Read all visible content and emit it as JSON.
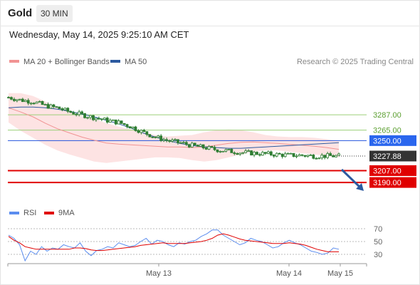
{
  "header": {
    "title": "Gold",
    "timeframe": "30 MIN",
    "datetime": "Wednesday, May 14, 2025 9:25:10 AM CET"
  },
  "colors": {
    "candle": "#2e7d32",
    "bollinger_fill": "#fde3e3",
    "ma20": "#f19393",
    "ma50": "#2c5aa0",
    "support": "#e00000",
    "resistance": "#9ccf79",
    "pivot": "#2255dd",
    "arrow": "#2c5aa0",
    "rsi": "#5b8def",
    "rsi_ma": "#e00000"
  },
  "chart_data": [
    {
      "type": "candlestick",
      "legend": [
        {
          "name": "MA 20 + Bollinger Bands",
          "color": "#f19393"
        },
        {
          "name": "MA 50",
          "color": "#2c5aa0"
        }
      ],
      "credit": "Research © 2025 Trading Central",
      "ylim": [
        3184,
        3331
      ],
      "x_labels": [
        "May 13",
        "May 14",
        "May 15"
      ],
      "levels": [
        {
          "value": 3287.0,
          "label": "3287.00",
          "kind": "resistance"
        },
        {
          "value": 3265.0,
          "label": "3265.00",
          "kind": "resistance"
        },
        {
          "value": 3250.0,
          "label": "3250.00",
          "kind": "pivot"
        },
        {
          "value": 3207.0,
          "label": "3207.00",
          "kind": "support"
        },
        {
          "value": 3190.0,
          "label": "3190.00",
          "kind": "support"
        }
      ],
      "last_price": {
        "value": 3227.88,
        "label": "3227.88"
      },
      "close": [
        3312,
        3308,
        3306,
        3300,
        3297,
        3291,
        3287,
        3283,
        3279,
        3276,
        3270,
        3262,
        3255,
        3250,
        3247,
        3243,
        3240,
        3237,
        3235,
        3233,
        3232,
        3231,
        3230,
        3229,
        3229,
        3228,
        3228,
        3227.88
      ],
      "ma50": [
        3297,
        3298,
        3298,
        3297,
        3295,
        3292,
        3288,
        3284,
        3279,
        3274,
        3268,
        3261,
        3255,
        3250,
        3246,
        3243,
        3241,
        3240,
        3239,
        3239,
        3240,
        3241,
        3242,
        3243,
        3244,
        3245,
        3246,
        3247
      ],
      "bb_upper": [
        3318,
        3318,
        3314,
        3306,
        3298,
        3292,
        3285,
        3281,
        3275,
        3270,
        3266,
        3262,
        3258,
        3256,
        3257,
        3258,
        3262,
        3265,
        3266,
        3265,
        3262,
        3258,
        3256,
        3255,
        3255,
        3254,
        3252,
        3249
      ],
      "bb_lower": [
        3276,
        3264,
        3254,
        3244,
        3236,
        3230,
        3225,
        3220,
        3218,
        3220,
        3222,
        3224,
        3226,
        3226,
        3225,
        3222,
        3220,
        3222,
        3226,
        3230,
        3234,
        3236,
        3236,
        3234,
        3232,
        3230,
        3228,
        3226
      ]
    },
    {
      "type": "line",
      "legend": [
        {
          "name": "RSI",
          "color": "#5b8def"
        },
        {
          "name": "9MA",
          "color": "#e00000"
        }
      ],
      "ylim": [
        20,
        80
      ],
      "y_ticks": [
        70,
        50,
        30
      ],
      "rsi": [
        60,
        55,
        45,
        20,
        35,
        30,
        42,
        35,
        40,
        38,
        45,
        42,
        40,
        48,
        35,
        28,
        36,
        38,
        42,
        40,
        48,
        45,
        42,
        44,
        50,
        55,
        46,
        52,
        50,
        45,
        42,
        48,
        46,
        50,
        52,
        58,
        62,
        68,
        68,
        60,
        55,
        50,
        45,
        48,
        55,
        52,
        50,
        45,
        40,
        42,
        48,
        52,
        48,
        45,
        40,
        35,
        33,
        30,
        32,
        40,
        38
      ],
      "ma9": [
        58,
        52,
        48,
        42,
        40,
        38,
        38,
        38,
        38,
        38,
        38,
        38,
        40,
        40,
        39,
        37,
        36,
        36,
        37,
        38,
        39,
        40,
        41,
        42,
        44,
        45,
        46,
        47,
        48,
        47,
        47,
        47,
        47,
        48,
        49,
        50,
        52,
        55,
        60,
        62,
        60,
        57,
        54,
        52,
        51,
        50,
        49,
        48,
        47,
        47,
        47,
        48,
        47,
        46,
        44,
        41,
        38,
        36,
        34,
        34,
        34
      ]
    }
  ]
}
